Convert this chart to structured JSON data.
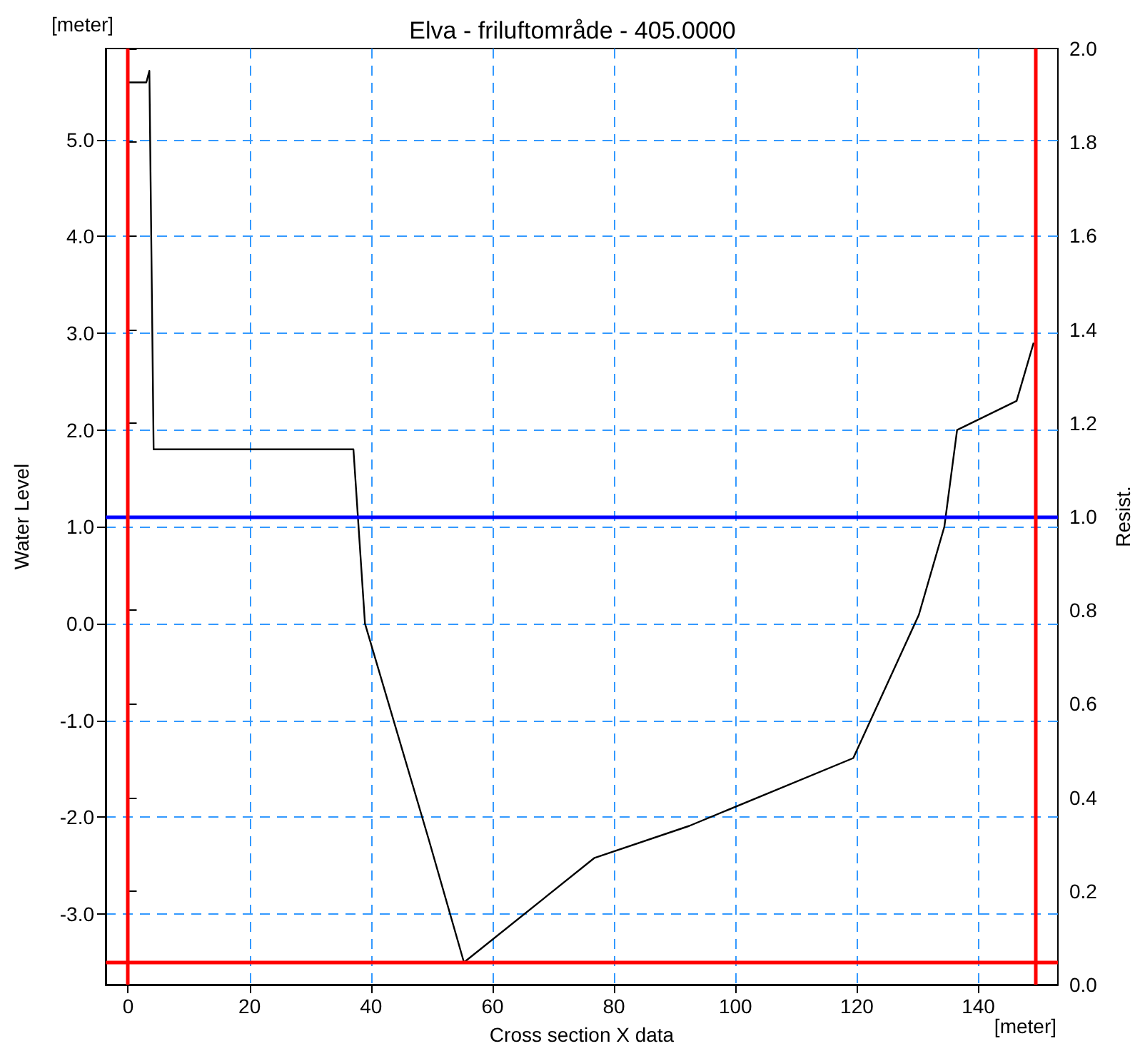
{
  "chart_data": {
    "type": "line",
    "title": "Elva - friluftområde - 405.0000",
    "xlabel": "Cross section X data",
    "ylabel": "Water Level",
    "y2label": "Resist.",
    "annotations": [
      "[meter]",
      "[meter]"
    ],
    "x": [
      0,
      3.0,
      3.5,
      4.2,
      37.1,
      39.0,
      49.5,
      55.3,
      76.8,
      92.4,
      119.4,
      130.2,
      134.4,
      136.5,
      146.3,
      149.1
    ],
    "series": [
      {
        "color": "#000000",
        "values": [
          5.59,
          5.59,
          5.71,
          1.8,
          1.8,
          0.0,
          -2.23,
          -3.5,
          -2.42,
          -2.09,
          -1.39,
          0.09,
          1.0,
          2.0,
          2.3,
          2.9
        ]
      }
    ],
    "xlim": [
      -3.7,
      153.1
    ],
    "ylim": [
      -3.73,
      5.94
    ],
    "y2lim": [
      0,
      2
    ],
    "xticks": [
      0,
      20,
      40,
      60,
      80,
      100,
      120,
      140
    ],
    "yticks": [
      {
        "value": -3,
        "label": "-3.0"
      },
      {
        "value": -2,
        "label": "-2.0"
      },
      {
        "value": -1,
        "label": "-1.0"
      },
      {
        "value": 0,
        "label": "0.0"
      },
      {
        "value": 1,
        "label": "1.0"
      },
      {
        "value": 2,
        "label": "2.0"
      },
      {
        "value": 3,
        "label": "3.0"
      },
      {
        "value": 4,
        "label": "4.0"
      },
      {
        "value": 5,
        "label": "5.0"
      }
    ],
    "y2ticks": [
      {
        "value": 0,
        "label": "0.0"
      },
      0.2,
      0.4,
      0.6,
      0.8,
      {
        "value": 1,
        "label": "1.0"
      },
      1.2,
      1.4,
      1.6,
      1.8,
      {
        "value": 2,
        "label": "2.0"
      }
    ],
    "ref_lines": [
      {
        "axis": "y",
        "value": 1.1,
        "color": "#0000ff"
      },
      {
        "axis": "x",
        "value": 0,
        "color": "#ff0000"
      },
      {
        "axis": "x",
        "value": 149.3,
        "color": "#ff0000"
      },
      {
        "axis": "y",
        "value": -3.5,
        "color": "#ff0000"
      }
    ],
    "grid": true,
    "line_style": "solid",
    "marker": "none"
  }
}
